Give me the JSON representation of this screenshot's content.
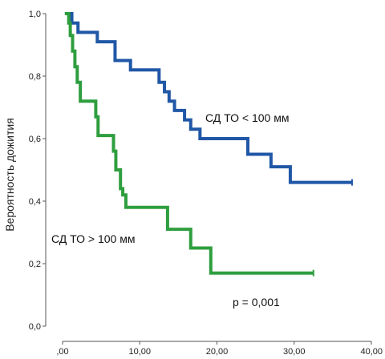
{
  "chart_data": {
    "type": "line",
    "subtype": "step",
    "ylabel": "Вероятность дожития",
    "xlim": [
      0,
      40
    ],
    "ylim": [
      0,
      1
    ],
    "x_ticks": [
      0,
      10,
      20,
      30,
      40
    ],
    "x_tick_labels": [
      ",00",
      "10,00",
      "20,00",
      "30,00",
      "40,00"
    ],
    "y_ticks": [
      0,
      0.2,
      0.4,
      0.6,
      0.8,
      1.0
    ],
    "y_tick_labels": [
      "0,0",
      "0,2",
      "0,4",
      "0,6",
      "0,8",
      "1,0"
    ],
    "grid": false,
    "series": [
      {
        "name": "СД ТО < 100 мм",
        "color": "#2057a6",
        "points": [
          [
            0.3,
            1.0
          ],
          [
            1.2,
            0.97
          ],
          [
            2.0,
            0.94
          ],
          [
            4.5,
            0.91
          ],
          [
            6.8,
            0.85
          ],
          [
            8.8,
            0.82
          ],
          [
            12.5,
            0.78
          ],
          [
            13.2,
            0.75
          ],
          [
            13.8,
            0.72
          ],
          [
            14.5,
            0.69
          ],
          [
            15.8,
            0.66
          ],
          [
            16.6,
            0.63
          ],
          [
            17.8,
            0.6
          ],
          [
            24.0,
            0.55
          ],
          [
            27.0,
            0.51
          ],
          [
            29.5,
            0.46
          ]
        ],
        "end_x": 37.5
      },
      {
        "name": "СД ТО > 100 мм",
        "color": "#2e9e3e",
        "points": [
          [
            0.3,
            1.0
          ],
          [
            0.8,
            0.97
          ],
          [
            1.0,
            0.93
          ],
          [
            1.3,
            0.88
          ],
          [
            1.6,
            0.83
          ],
          [
            1.9,
            0.78
          ],
          [
            2.3,
            0.72
          ],
          [
            4.3,
            0.67
          ],
          [
            4.6,
            0.61
          ],
          [
            6.6,
            0.56
          ],
          [
            6.9,
            0.5
          ],
          [
            7.5,
            0.44
          ],
          [
            7.8,
            0.42
          ],
          [
            8.2,
            0.38
          ],
          [
            13.6,
            0.31
          ],
          [
            16.6,
            0.25
          ],
          [
            19.2,
            0.17
          ]
        ],
        "end_x": 32.5
      }
    ],
    "annotations": [
      {
        "text": "СД ТО < 100 мм"
      },
      {
        "text": "СД ТО > 100 мм"
      },
      {
        "text": "p = 0,001"
      }
    ]
  }
}
